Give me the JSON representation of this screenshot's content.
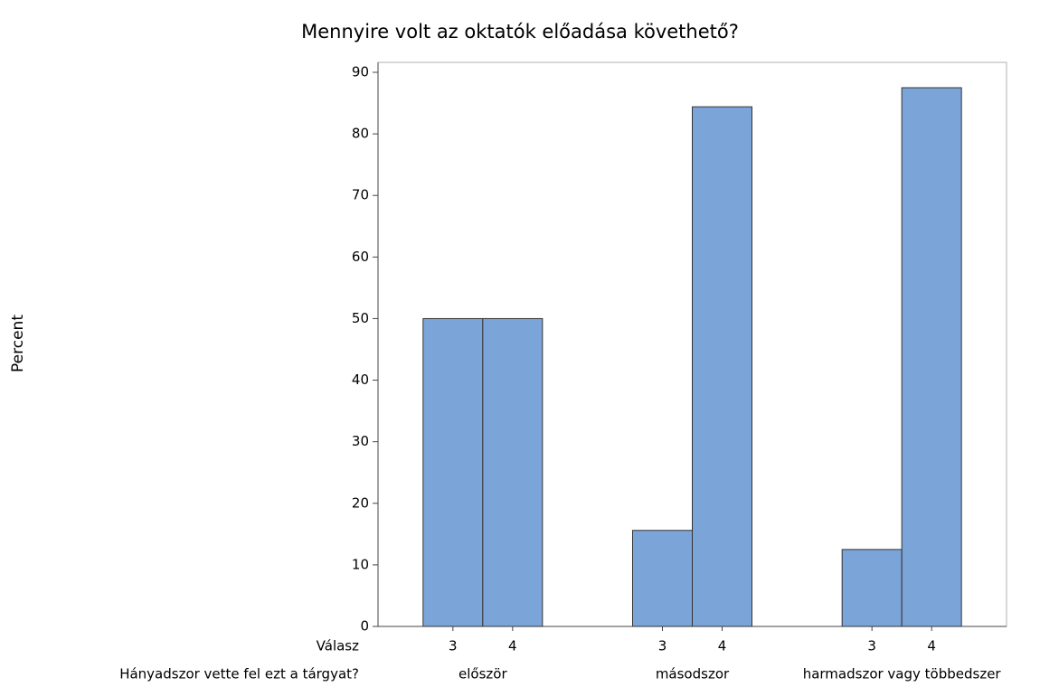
{
  "chart_data": {
    "type": "bar",
    "title": "Mennyire volt az oktatók előadása követhető?",
    "ylabel": "Percent",
    "xlabel_inner": "Válasz",
    "xlabel_outer": "Hányadszor vette fel ezt a tárgyat?",
    "categories": [
      "először",
      "másodszor",
      "harmadszor vagy többedszer"
    ],
    "series": [
      {
        "name": "3",
        "color": "#7ba5d8",
        "values": [
          50,
          15.6,
          12.5
        ]
      },
      {
        "name": "4",
        "color": "#7ba5d8",
        "values": [
          50,
          84.4,
          87.5
        ]
      }
    ],
    "ylim": [
      0,
      90
    ],
    "yticks": [
      0,
      10,
      20,
      30,
      40,
      50,
      60,
      70,
      80,
      90
    ],
    "grid": false
  }
}
